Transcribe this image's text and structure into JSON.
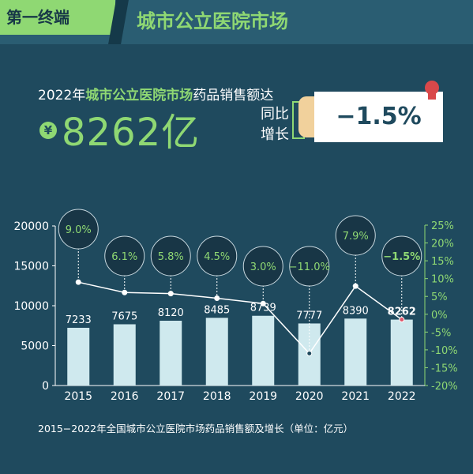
{
  "header": {
    "tag": "第一终端",
    "title": "城市公立医院市场"
  },
  "headline": {
    "lead_year": "2022年",
    "lead_market": "城市公立医院市场",
    "lead_tail": "药品销售额达",
    "currency_symbol": "¥",
    "total_value": "8262亿",
    "yoy_label": "同比增长",
    "yoy_value": "−1.5%"
  },
  "colors": {
    "background": "#1f4a5e",
    "accent_green": "#8fd873",
    "bar": "#cfe9ee",
    "bubble": "#183646",
    "decline_marker": "#e0566a"
  },
  "chart_data": {
    "type": "bar",
    "categories": [
      "2015",
      "2016",
      "2017",
      "2018",
      "2019",
      "2020",
      "2021",
      "2022"
    ],
    "series": [
      {
        "values": [
          7233,
          7675,
          8120,
          8485,
          8739,
          7777,
          8390,
          8262
        ],
        "labels": [
          "7233",
          "7675",
          "8120",
          "8485",
          "8739",
          "7777",
          "8390",
          "8262"
        ],
        "axis": "left",
        "type": "bar"
      },
      {
        "values": [
          9.0,
          6.1,
          5.8,
          4.5,
          3.0,
          -11.0,
          7.9,
          -1.5
        ],
        "labels": [
          "9.0%",
          "6.1%",
          "5.8%",
          "4.5%",
          "3.0%",
          "−11.0%",
          "7.9%",
          "−1.5%"
        ],
        "axis": "right",
        "type": "line"
      }
    ],
    "y_left": {
      "range": [
        0,
        20000
      ],
      "ticks": [
        "0",
        "5000",
        "10000",
        "15000",
        "20000"
      ]
    },
    "y_right": {
      "range": [
        -20,
        25
      ],
      "ticks": [
        "-20%",
        "-15%",
        "-10%",
        "-5%",
        "0%",
        "5%",
        "10%",
        "15%",
        "20%",
        "25%"
      ]
    },
    "legend": "none",
    "grid": false
  },
  "caption": "2015−2022年全国城市公立医院市场药品销售额及增长（单位：亿元）"
}
